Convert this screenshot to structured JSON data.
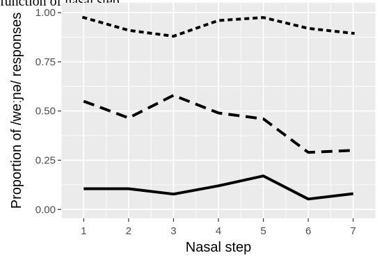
{
  "caption": "function of nasal step.",
  "chart_data": {
    "type": "line",
    "title": "",
    "xlabel": "Nasal step",
    "ylabel": "Proportion of /weːɲə/ responses",
    "x": [
      1,
      2,
      3,
      4,
      5,
      6,
      7
    ],
    "xlim": [
      0.5,
      7.5
    ],
    "ylim": [
      -0.045,
      1.05
    ],
    "xticks": [
      "1",
      "2",
      "3",
      "4",
      "5",
      "6",
      "7"
    ],
    "yticks": [
      "0.00",
      "0.25",
      "0.50",
      "0.75",
      "1.00"
    ],
    "grid": true,
    "legend": "none",
    "series": [
      {
        "style": "dotted",
        "values": [
          0.975,
          0.91,
          0.88,
          0.96,
          0.975,
          0.92,
          0.895
        ]
      },
      {
        "style": "dashed",
        "values": [
          0.55,
          0.465,
          0.58,
          0.49,
          0.46,
          0.29,
          0.3
        ]
      },
      {
        "style": "solid",
        "values": [
          0.105,
          0.105,
          0.078,
          0.12,
          0.17,
          0.053,
          0.08
        ]
      }
    ],
    "colors": {
      "panel": "#ebebeb",
      "grid": "#ffffff",
      "line": "#000000",
      "tick_text": "#4d4d4d"
    }
  }
}
